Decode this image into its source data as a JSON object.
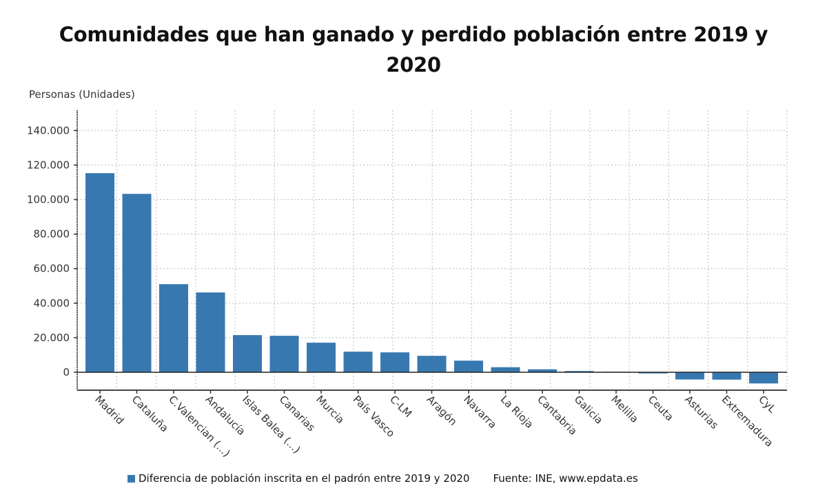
{
  "chart_data": {
    "type": "bar",
    "title_lines": [
      "Comunidades que han ganado y perdido población entre 2019 y",
      "2020"
    ],
    "ylabel": "Personas (Unidades)",
    "xlabel": "",
    "categories": [
      "Madrid",
      "Cataluña",
      "C.Valencian (...)",
      "Andalucía",
      "Islas Balea (...)",
      "Canarias",
      "Murcia",
      "País Vasco",
      "C-LM",
      "Aragón",
      "Navarra",
      "La Rioja",
      "Cantabria",
      "Galicia",
      "Melilla",
      "Ceuta",
      "Asturias",
      "Extremadura",
      "CyL"
    ],
    "series": [
      {
        "name": "Diferencia de población inscrita en el padrón entre 2019 y 2020",
        "color": "#3878b0",
        "values": [
          115300,
          103300,
          51000,
          46200,
          21500,
          21100,
          17100,
          11900,
          11500,
          9500,
          6700,
          2900,
          1700,
          700,
          300,
          -700,
          -4200,
          -4300,
          -6500
        ]
      }
    ],
    "ylim": [
      -10400,
      151700
    ],
    "yticks": [
      0,
      20000,
      40000,
      60000,
      80000,
      100000,
      120000,
      140000
    ],
    "ytick_labels": [
      "0",
      "20.000",
      "40.000",
      "60.000",
      "80.000",
      "100.000",
      "120.000",
      "140.000"
    ],
    "grid": true,
    "legend_position": "bottom",
    "source": "Fuente: INE, www.epdata.es"
  }
}
